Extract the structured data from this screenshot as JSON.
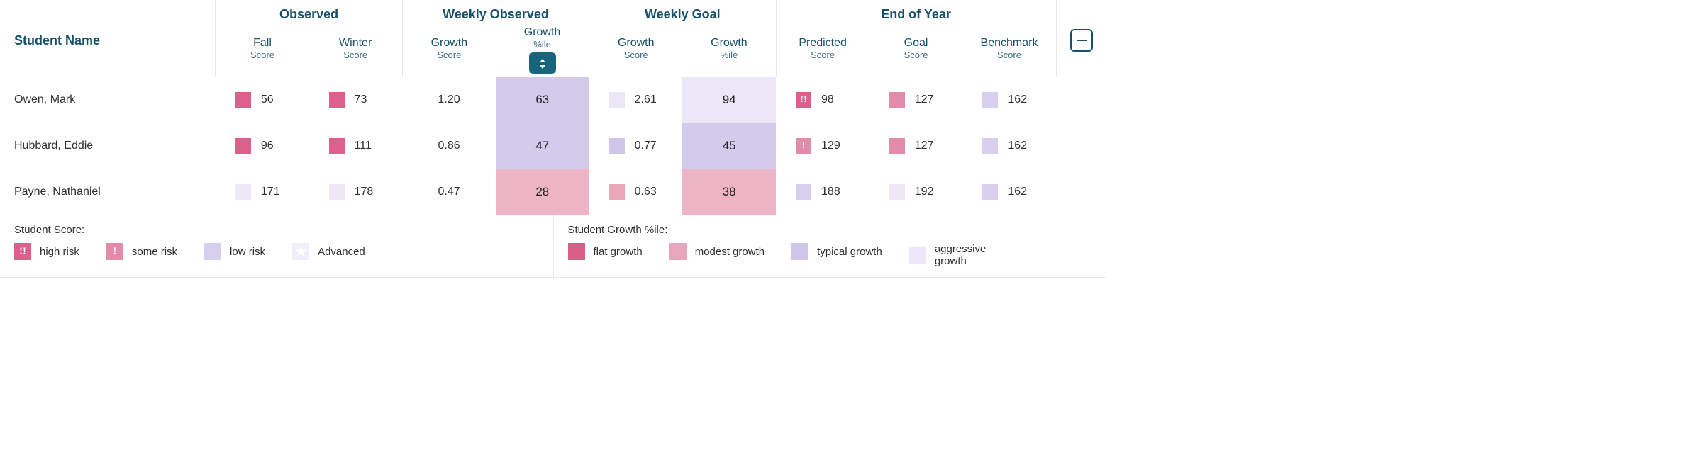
{
  "colors": {
    "highRisk": "#de5f8c",
    "someRisk": "#e38ca9",
    "lowRisk": "#d6cfed",
    "lowRisk2": "#ede9f7",
    "advanced": "#f1eef9",
    "flatGrowth": "#d95f88",
    "modestGrowth": "#e8a6bb",
    "modestFill": "#edb4c5",
    "typicalGrowth": "#cfc6ea",
    "typicalFill": "#d3caec",
    "aggressiveGrowth": "#ece7f7",
    "white": "#ffffff"
  },
  "headers": {
    "studentName": "Student Name",
    "groups": {
      "observed": "Observed",
      "weeklyObserved": "Weekly Observed",
      "weeklyGoal": "Weekly Goal",
      "endOfYear": "End of Year"
    },
    "cols": {
      "fall": {
        "label": "Fall",
        "sub": "Score"
      },
      "winter": {
        "label": "Winter",
        "sub": "Score"
      },
      "woGrowthScore": {
        "label": "Growth",
        "sub": "Score"
      },
      "woGrowthPile": {
        "label": "Growth",
        "sub": "%ile"
      },
      "wgGrowthScore": {
        "label": "Growth",
        "sub": "Score"
      },
      "wgGrowthPile": {
        "label": "Growth",
        "sub": "%ile"
      },
      "predicted": {
        "label": "Predicted",
        "sub": "Score"
      },
      "goal": {
        "label": "Goal",
        "sub": "Score"
      },
      "benchmark": {
        "label": "Benchmark",
        "sub": "Score"
      }
    }
  },
  "rows": [
    {
      "name": "Owen, Mark",
      "fall": {
        "v": "56",
        "c": "highRisk"
      },
      "winter": {
        "v": "73",
        "c": "highRisk"
      },
      "woScore": "1.20",
      "woPile": {
        "v": "63",
        "fill": "typicalFill"
      },
      "wgScore": {
        "v": "2.61",
        "c": "aggressiveGrowth"
      },
      "wgPile": {
        "v": "94",
        "fill": "aggressiveGrowth"
      },
      "predicted": {
        "v": "98",
        "c": "highRisk",
        "icon": "!!"
      },
      "goal": {
        "v": "127",
        "c": "someRisk"
      },
      "benchmark": {
        "v": "162",
        "c": "lowRisk"
      }
    },
    {
      "name": "Hubbard, Eddie",
      "fall": {
        "v": "96",
        "c": "highRisk"
      },
      "winter": {
        "v": "111",
        "c": "highRisk"
      },
      "woScore": "0.86",
      "woPile": {
        "v": "47",
        "fill": "typicalFill"
      },
      "wgScore": {
        "v": "0.77",
        "c": "typicalGrowth"
      },
      "wgPile": {
        "v": "45",
        "fill": "typicalFill"
      },
      "predicted": {
        "v": "129",
        "c": "someRisk",
        "icon": "!"
      },
      "goal": {
        "v": "127",
        "c": "someRisk"
      },
      "benchmark": {
        "v": "162",
        "c": "lowRisk"
      }
    },
    {
      "name": "Payne, Nathaniel",
      "fall": {
        "v": "171",
        "c": "lowRisk2"
      },
      "winter": {
        "v": "178",
        "c": "lowRisk2"
      },
      "woScore": "0.47",
      "woPile": {
        "v": "28",
        "fill": "modestFill"
      },
      "wgScore": {
        "v": "0.63",
        "c": "modestGrowth"
      },
      "wgPile": {
        "v": "38",
        "fill": "modestFill"
      },
      "predicted": {
        "v": "188",
        "c": "lowRisk"
      },
      "goal": {
        "v": "192",
        "c": "lowRisk2"
      },
      "benchmark": {
        "v": "162",
        "c": "lowRisk"
      }
    }
  ],
  "legend": {
    "score": {
      "title": "Student Score:",
      "items": [
        {
          "label": "high risk",
          "c": "highRisk",
          "icon": "!!"
        },
        {
          "label": "some risk",
          "c": "someRisk",
          "icon": "!"
        },
        {
          "label": "low risk",
          "c": "lowRisk"
        },
        {
          "label": "Advanced",
          "c": "advanced",
          "star": true
        }
      ]
    },
    "growth": {
      "title": "Student Growth %ile:",
      "items": [
        {
          "label": "flat growth",
          "c": "flatGrowth"
        },
        {
          "label": "modest growth",
          "c": "modestGrowth"
        },
        {
          "label": "typical growth",
          "c": "typicalGrowth"
        },
        {
          "label": "aggressive growth",
          "c": "aggressiveGrowth"
        }
      ]
    }
  }
}
